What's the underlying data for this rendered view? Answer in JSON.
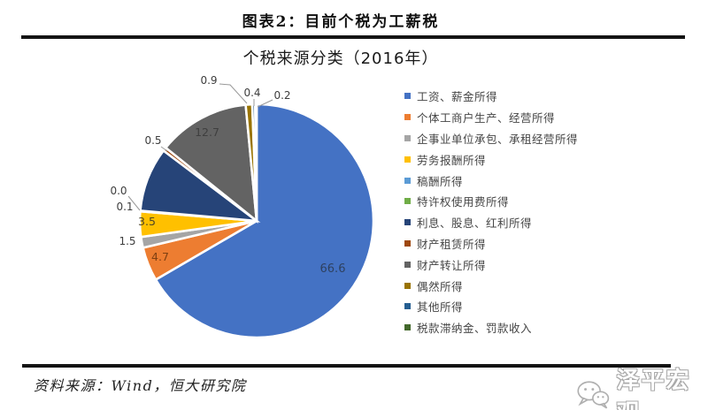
{
  "page": {
    "header": {
      "title": "图表2：目前个税为工薪税"
    },
    "footer": {
      "source": "资料来源：Wind，恒大研究院",
      "logo": {
        "text": "泽平宏观",
        "icon": "wechat-bubbles-icon"
      }
    }
  },
  "chart_data": {
    "type": "pie",
    "title": "个税来源分类（2016年）",
    "year": "2016",
    "unit": "%",
    "legend_position": "right",
    "rotation": "clockwise-from-top",
    "categories": [
      "工资、薪金所得",
      "个体工商户生产、经营所得",
      "企事业单位承包、承租经营所得",
      "劳务报酬所得",
      "稿酬所得",
      "特许权使用费所得",
      "利息、股息、红利所得",
      "财产租赁所得",
      "财产转让所得",
      "偶然所得",
      "其他所得",
      "税款滞纳金、罚款收入"
    ],
    "values": [
      66.6,
      4.7,
      1.5,
      3.5,
      0.1,
      0.0,
      8.9,
      0.5,
      12.7,
      0.9,
      0.4,
      0.2
    ],
    "colors": [
      "#4472C4",
      "#ED7D31",
      "#A5A5A5",
      "#FFC000",
      "#5B9BD5",
      "#70AD47",
      "#264478",
      "#9E480E",
      "#636363",
      "#997300",
      "#255E91",
      "#43682B"
    ]
  }
}
